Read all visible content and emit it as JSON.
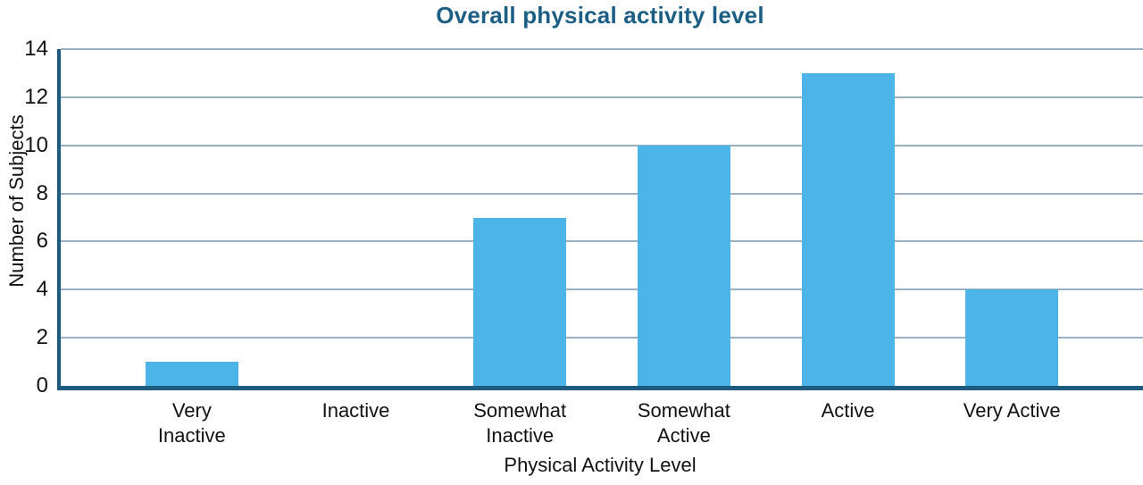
{
  "chart_data": {
    "type": "bar",
    "title": "Overall physical activity level",
    "xlabel": "Physical Activity Level",
    "ylabel": "Number of Subjects",
    "categories": [
      "Very\nInactive",
      "Inactive",
      "Somewhat\nInactive",
      "Somewhat\nActive",
      "Active",
      "Very Active"
    ],
    "values": [
      1,
      0,
      7,
      10,
      13,
      4
    ],
    "ylim": [
      0,
      14
    ],
    "yticks": [
      0,
      2,
      4,
      6,
      8,
      10,
      12,
      14
    ],
    "grid": "horizontal-only",
    "legend": "none",
    "colors": {
      "bar": "#4db4e7",
      "axis": "#1f5b7e",
      "gridline": "#98b0c2",
      "title": "#1d5e85",
      "text": "#111111"
    }
  }
}
